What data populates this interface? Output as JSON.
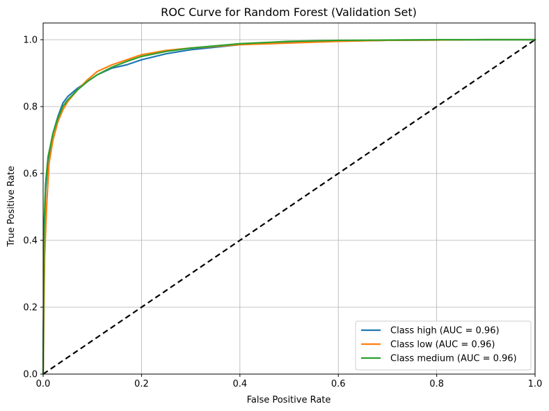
{
  "chart_data": {
    "type": "line",
    "title": "ROC Curve for Random Forest (Validation Set)",
    "xlabel": "False Positive Rate",
    "ylabel": "True Positive Rate",
    "xlim": [
      0,
      1
    ],
    "ylim": [
      0,
      1.05
    ],
    "xticks": [
      0.0,
      0.2,
      0.4,
      0.6,
      0.8,
      1.0
    ],
    "yticks": [
      0.0,
      0.2,
      0.4,
      0.6,
      0.8,
      1.0
    ],
    "xtick_labels": [
      "0.0",
      "0.2",
      "0.4",
      "0.6",
      "0.8",
      "1.0"
    ],
    "ytick_labels": [
      "0.0",
      "0.2",
      "0.4",
      "0.6",
      "0.8",
      "1.0"
    ],
    "grid": true,
    "legend_position": "bottom-right",
    "series": [
      {
        "name": "Class high (AUC = 0.96)",
        "color": "#1f77b4",
        "x": [
          0,
          0.002,
          0.005,
          0.01,
          0.02,
          0.03,
          0.04,
          0.05,
          0.07,
          0.09,
          0.11,
          0.14,
          0.17,
          0.2,
          0.25,
          0.3,
          0.4,
          0.5,
          0.6,
          0.7,
          0.8,
          0.9,
          1.0
        ],
        "y": [
          0,
          0.42,
          0.55,
          0.64,
          0.72,
          0.77,
          0.81,
          0.83,
          0.855,
          0.875,
          0.895,
          0.915,
          0.925,
          0.94,
          0.958,
          0.97,
          0.985,
          0.992,
          0.996,
          0.998,
          0.999,
          1.0,
          1.0
        ]
      },
      {
        "name": "Class low (AUC = 0.96)",
        "color": "#ff7f0e",
        "x": [
          0,
          0.003,
          0.007,
          0.012,
          0.02,
          0.03,
          0.04,
          0.05,
          0.07,
          0.09,
          0.11,
          0.14,
          0.17,
          0.2,
          0.25,
          0.3,
          0.4,
          0.5,
          0.6,
          0.7,
          0.8,
          0.9,
          1.0
        ],
        "y": [
          0,
          0.35,
          0.5,
          0.63,
          0.7,
          0.755,
          0.79,
          0.815,
          0.85,
          0.88,
          0.905,
          0.925,
          0.94,
          0.955,
          0.968,
          0.975,
          0.985,
          0.99,
          0.995,
          0.998,
          0.999,
          1.0,
          1.0
        ]
      },
      {
        "name": "Class medium (AUC = 0.96)",
        "color": "#2ca02c",
        "x": [
          0,
          0.002,
          0.005,
          0.01,
          0.02,
          0.03,
          0.04,
          0.05,
          0.07,
          0.09,
          0.11,
          0.14,
          0.17,
          0.2,
          0.25,
          0.3,
          0.4,
          0.5,
          0.6,
          0.7,
          0.8,
          0.9,
          1.0
        ],
        "y": [
          0,
          0.45,
          0.57,
          0.65,
          0.72,
          0.765,
          0.8,
          0.82,
          0.85,
          0.875,
          0.895,
          0.918,
          0.935,
          0.95,
          0.965,
          0.975,
          0.988,
          0.995,
          0.998,
          0.999,
          1.0,
          1.0,
          1.0
        ]
      }
    ],
    "reference_line": {
      "x": [
        0,
        1
      ],
      "y": [
        0,
        1
      ],
      "color": "#000000",
      "style": "dashed"
    }
  }
}
